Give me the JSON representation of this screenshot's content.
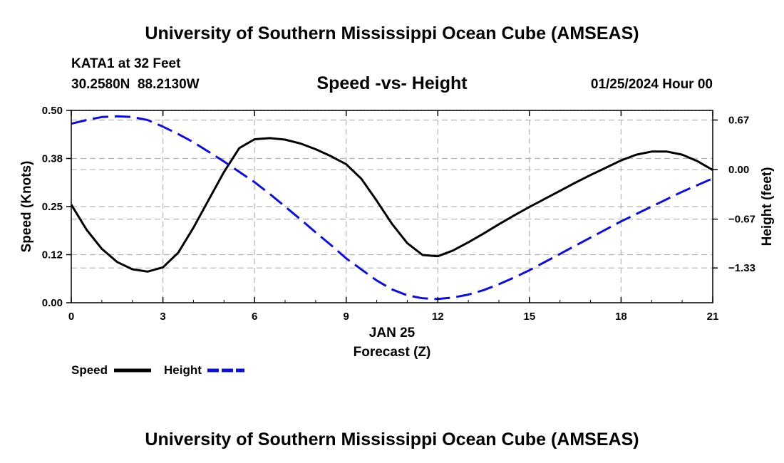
{
  "page_title": "University of Southern Mississippi Ocean Cube (AMSEAS)",
  "footer_title": "University of Southern Mississippi Ocean Cube (AMSEAS)",
  "station": {
    "name": "KATA1 at 32 Feet",
    "coords": "30.2580N  88.2130W"
  },
  "run": "01/25/2024 Hour 00",
  "colors": {
    "speed": "#000000",
    "height": "#1010cc",
    "grid": "#b4b4b4"
  },
  "chart_data": {
    "type": "line",
    "title": "Speed -vs- Height",
    "xlabel": "Forecast (Z)",
    "x_date_label": "JAN 25",
    "ylabel_left": "Speed (Knots)",
    "ylabel_right": "Height (feet)",
    "xlim": [
      0,
      21
    ],
    "ylim_left": [
      0,
      0.5
    ],
    "ylim_right": [
      -1.8,
      0.8
    ],
    "x_ticks": [
      0,
      3,
      6,
      9,
      12,
      15,
      18,
      21
    ],
    "x_tick_labels": [
      "0",
      "3",
      "6",
      "9",
      "12",
      "15",
      "18",
      "21"
    ],
    "y_left_ticks": [
      0,
      0.125,
      0.25,
      0.375,
      0.5
    ],
    "y_left_tick_labels": [
      "0.00",
      "0.12",
      "0.25",
      "0.38",
      "0.50"
    ],
    "y_right_ticks": [
      0.67,
      0,
      -0.67,
      -1.33
    ],
    "y_right_tick_labels": [
      "0.67",
      "0.00",
      "−0.67",
      "−1.33"
    ],
    "grid": true,
    "legend": [
      {
        "name": "Speed",
        "style": "solid"
      },
      {
        "name": "Height",
        "style": "dashed"
      }
    ],
    "series": [
      {
        "name": "Speed",
        "axis": "left",
        "style": "solid",
        "x": [
          0,
          0.5,
          1,
          1.5,
          2,
          2.5,
          3,
          3.5,
          4,
          4.5,
          5,
          5.5,
          6,
          6.5,
          7,
          7.5,
          8,
          8.5,
          9,
          9.5,
          10,
          10.5,
          11,
          11.5,
          12,
          12.5,
          13,
          13.5,
          14,
          14.5,
          15,
          15.5,
          16,
          16.5,
          17,
          17.5,
          18,
          18.5,
          19,
          19.5,
          20,
          20.5,
          21
        ],
        "values": [
          0.255,
          0.19,
          0.14,
          0.106,
          0.087,
          0.081,
          0.092,
          0.13,
          0.195,
          0.268,
          0.34,
          0.402,
          0.425,
          0.428,
          0.424,
          0.414,
          0.399,
          0.381,
          0.36,
          0.322,
          0.265,
          0.205,
          0.155,
          0.124,
          0.121,
          0.136,
          0.157,
          0.18,
          0.204,
          0.227,
          0.249,
          0.27,
          0.291,
          0.312,
          0.332,
          0.351,
          0.37,
          0.385,
          0.393,
          0.393,
          0.385,
          0.368,
          0.345
        ]
      },
      {
        "name": "Height",
        "axis": "right",
        "style": "dashed",
        "x": [
          0,
          0.5,
          1,
          1.5,
          2,
          2.5,
          3,
          3.5,
          4,
          4.5,
          5,
          5.5,
          6,
          6.5,
          7,
          7.5,
          8,
          8.5,
          9,
          9.5,
          10,
          10.5,
          11,
          11.5,
          12,
          12.5,
          13,
          13.5,
          14,
          14.5,
          15,
          15.5,
          16,
          16.5,
          17,
          17.5,
          18,
          18.5,
          19,
          19.5,
          20,
          20.5,
          21
        ],
        "values": [
          0.62,
          0.67,
          0.71,
          0.72,
          0.71,
          0.67,
          0.58,
          0.48,
          0.37,
          0.24,
          0.11,
          -0.03,
          -0.17,
          -0.33,
          -0.5,
          -0.67,
          -0.85,
          -1.02,
          -1.2,
          -1.35,
          -1.5,
          -1.62,
          -1.7,
          -1.74,
          -1.75,
          -1.73,
          -1.69,
          -1.63,
          -1.55,
          -1.46,
          -1.36,
          -1.25,
          -1.14,
          -1.03,
          -0.92,
          -0.81,
          -0.7,
          -0.6,
          -0.5,
          -0.4,
          -0.3,
          -0.21,
          -0.12
        ]
      }
    ]
  }
}
